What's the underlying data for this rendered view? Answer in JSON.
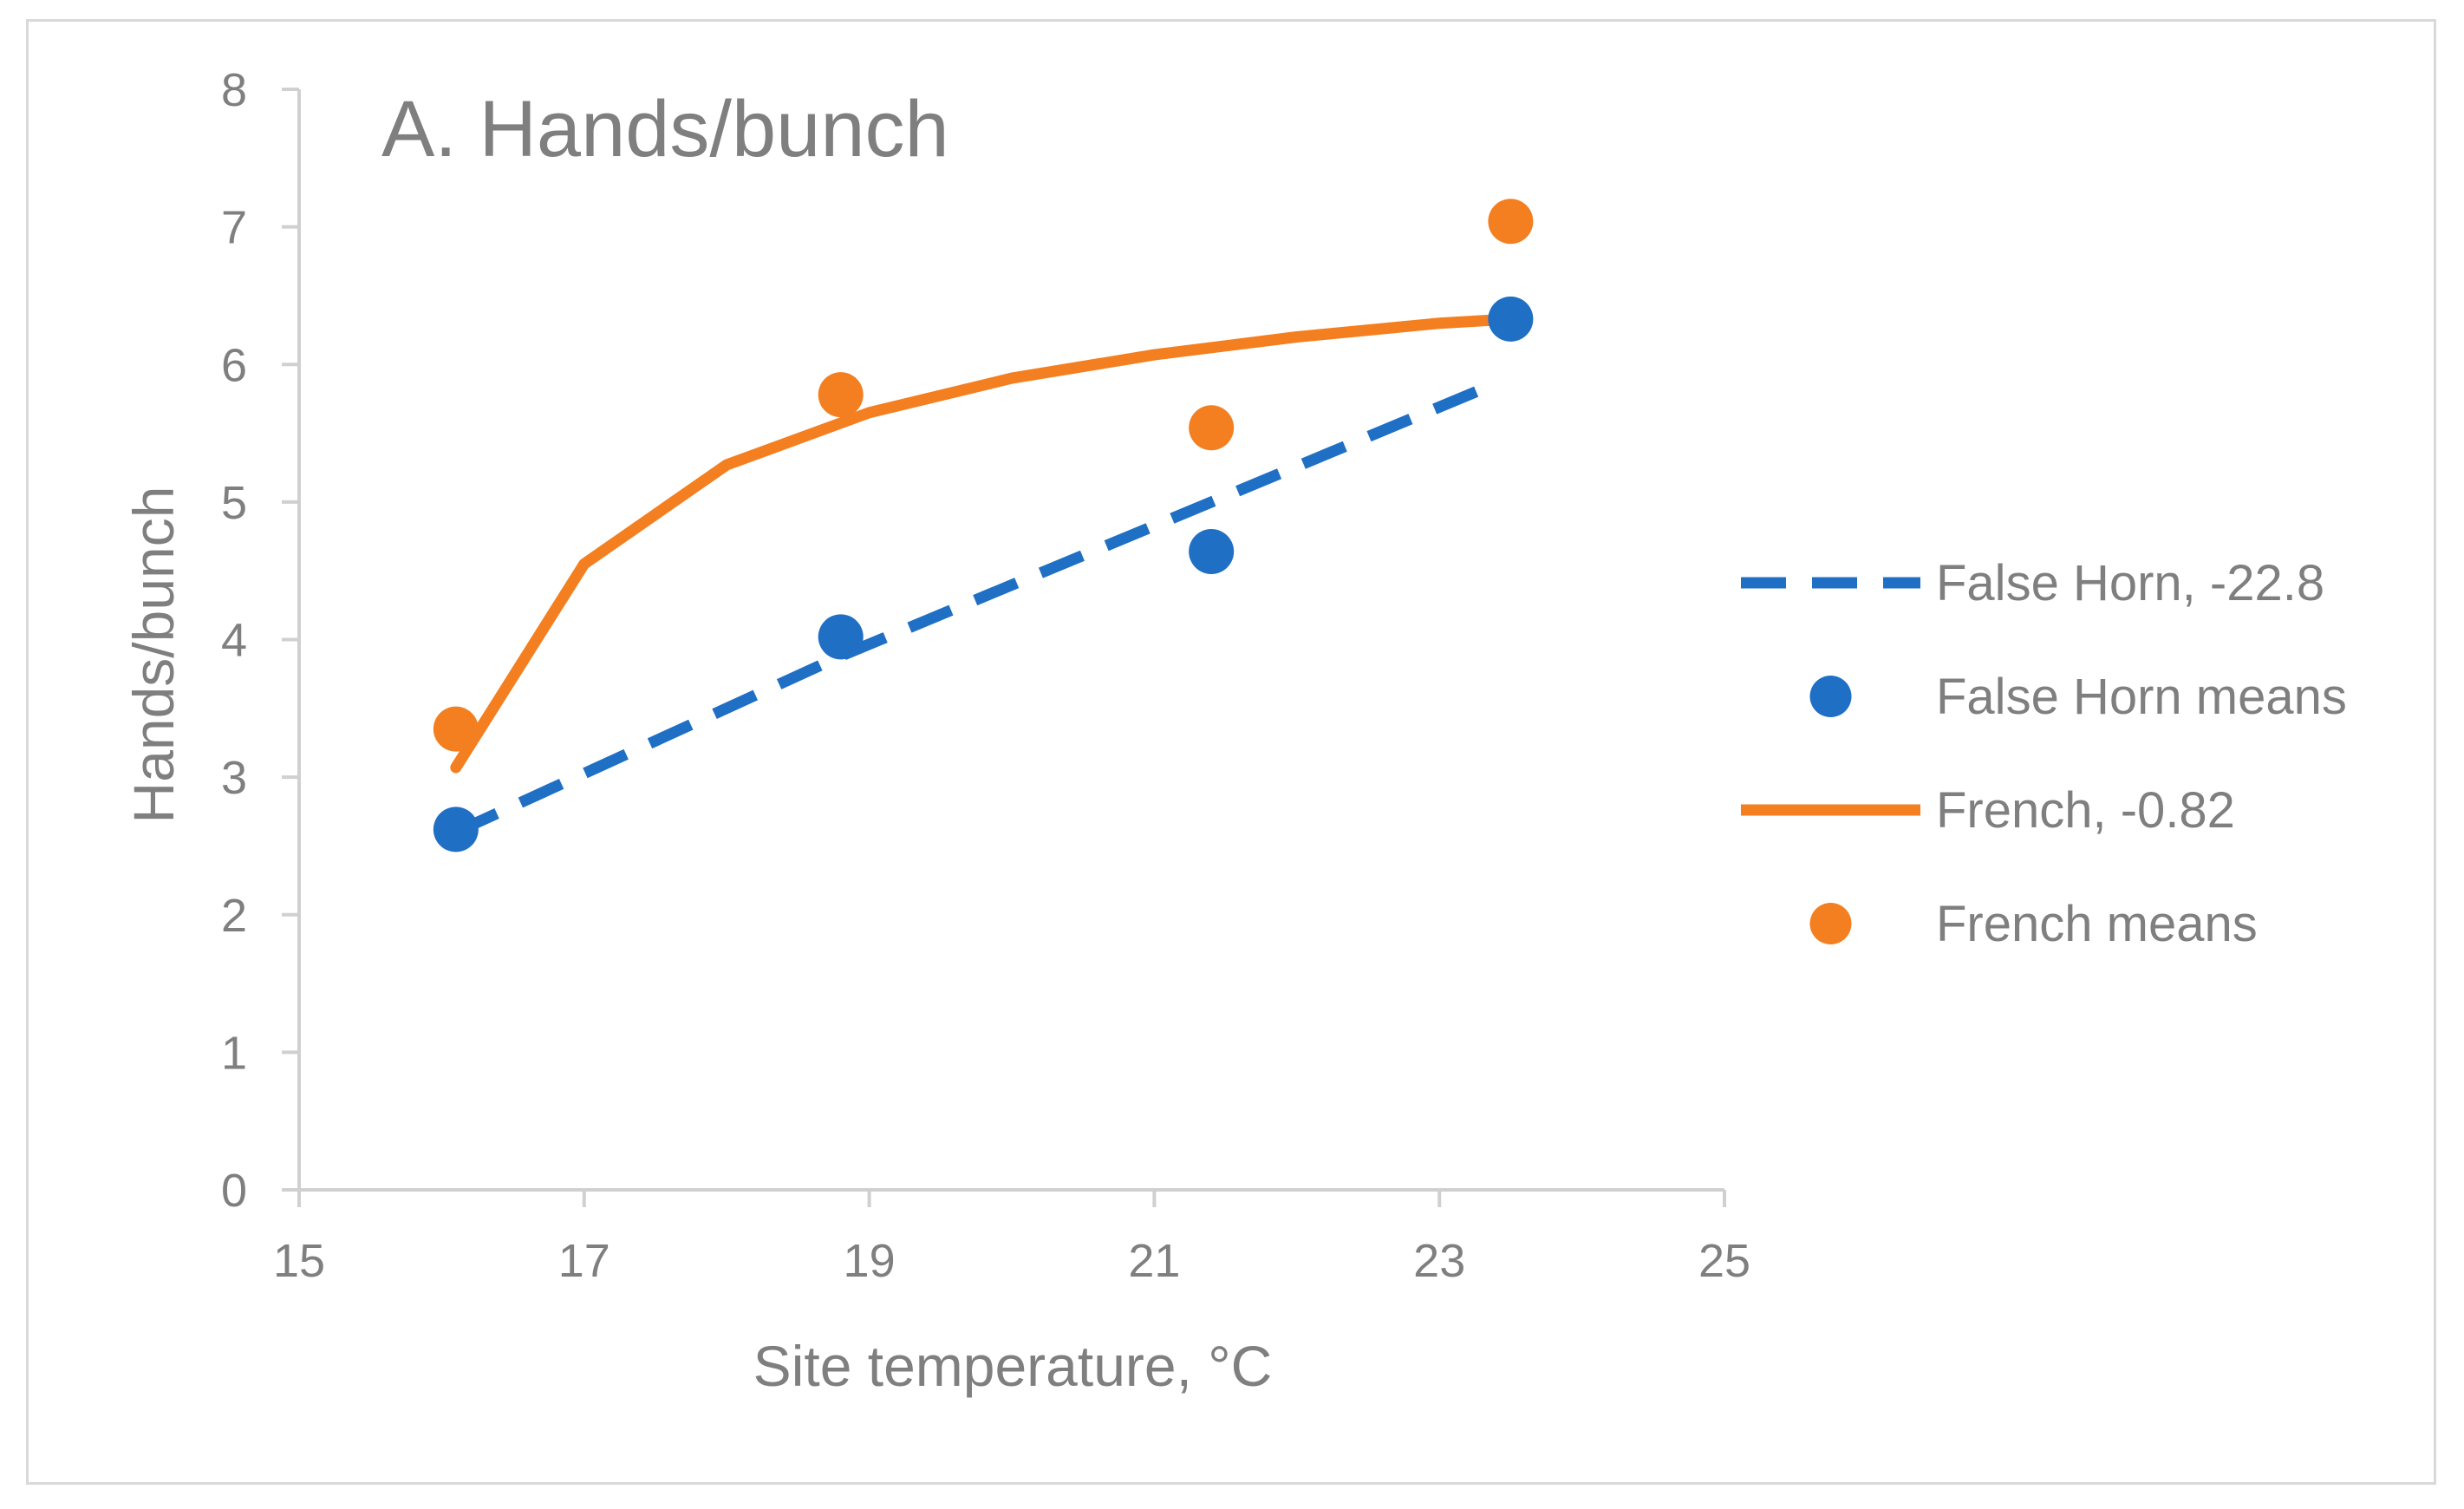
{
  "chart_data": {
    "type": "scatter",
    "title": "A. Hands/bunch",
    "xlabel": "Site temperature, °C",
    "ylabel": "Hands/bunch",
    "xlim": [
      15,
      25
    ],
    "ylim": [
      0,
      8
    ],
    "xticks": [
      "15",
      "17",
      "19",
      "21",
      "23",
      "25"
    ],
    "yticks": [
      "0",
      "1",
      "2",
      "3",
      "4",
      "5",
      "6",
      "7",
      "8"
    ],
    "grid": false,
    "legend_position": "right",
    "series": [
      {
        "name": "False Horn, -22.8",
        "kind": "line",
        "style": "dashed",
        "color": "#1f6fc5",
        "x": [
          16.1,
          18.8,
          21.4,
          23.3
        ],
        "y": [
          2.6,
          3.88,
          5.0,
          5.82
        ]
      },
      {
        "name": "False Horn means",
        "kind": "points",
        "color": "#1f6fc5",
        "x": [
          16.1,
          18.8,
          21.4,
          23.5
        ],
        "y": [
          2.62,
          4.02,
          4.64,
          6.33
        ]
      },
      {
        "name": "French, -0.82",
        "kind": "line",
        "style": "solid",
        "color": "#f47f20",
        "x": [
          16.1,
          17.0,
          18.0,
          19.0,
          20.0,
          21.0,
          22.0,
          23.0,
          23.5
        ],
        "y": [
          3.07,
          4.55,
          5.27,
          5.65,
          5.9,
          6.07,
          6.2,
          6.3,
          6.33
        ]
      },
      {
        "name": "French means",
        "kind": "points",
        "color": "#f47f20",
        "x": [
          16.1,
          18.8,
          21.4,
          23.5
        ],
        "y": [
          3.35,
          5.78,
          5.54,
          7.04
        ]
      }
    ]
  }
}
